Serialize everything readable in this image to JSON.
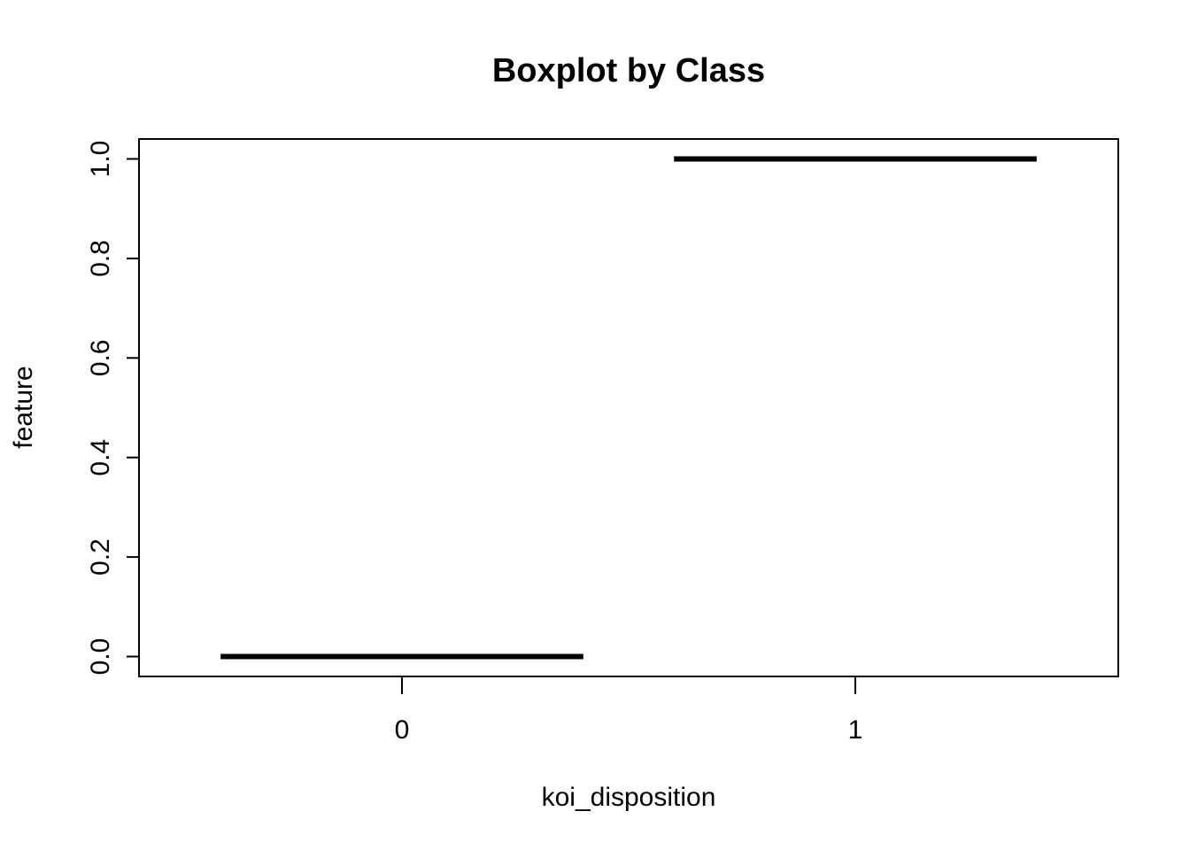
{
  "chart_data": {
    "type": "box",
    "title": "Boxplot by Class",
    "xlabel": "koi_disposition",
    "ylabel": "feature",
    "categories": [
      "0",
      "1"
    ],
    "boxes": [
      {
        "category": "0",
        "min": 0.0,
        "q1": 0.0,
        "median": 0.0,
        "q3": 0.0,
        "max": 0.0
      },
      {
        "category": "1",
        "min": 1.0,
        "q1": 1.0,
        "median": 1.0,
        "q3": 1.0,
        "max": 1.0
      }
    ],
    "ylim": [
      -0.04,
      1.04
    ],
    "yticks": [
      0.0,
      0.2,
      0.4,
      0.6,
      0.8,
      1.0
    ],
    "ytick_labels": [
      "0.0",
      "0.2",
      "0.4",
      "0.6",
      "0.8",
      "1.0"
    ],
    "grid": false,
    "legend": "none",
    "colors": {
      "stroke": "#000000",
      "background": "#ffffff"
    }
  }
}
